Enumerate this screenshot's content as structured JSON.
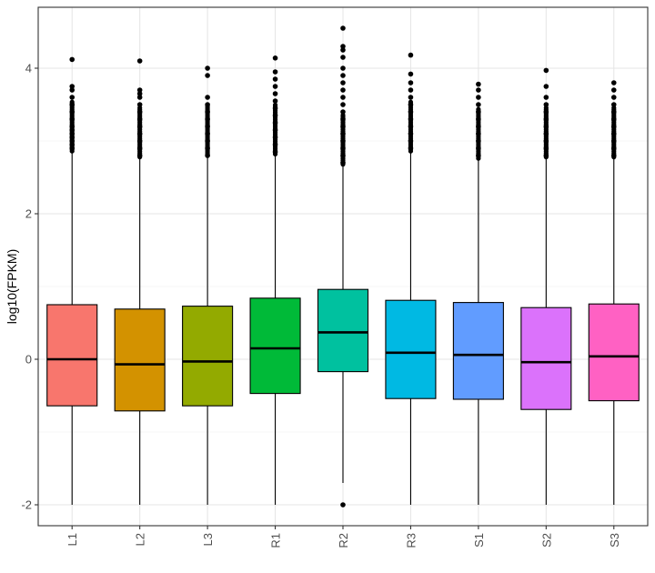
{
  "chart_data": {
    "type": "boxplot",
    "title": "",
    "xlabel": "",
    "ylabel": "log10(FPKM)",
    "ylim": [
      -2.2,
      4.9
    ],
    "y_ticks": [
      -2,
      0,
      2,
      4
    ],
    "y_tick_labels": [
      "-2",
      "0",
      "2",
      "4"
    ],
    "grid": true,
    "legend": "none",
    "categories": [
      "L1",
      "L2",
      "L3",
      "R1",
      "R2",
      "R3",
      "S1",
      "S2",
      "S3"
    ],
    "colors": [
      "#F8766D",
      "#D39200",
      "#93AA00",
      "#00BA38",
      "#00C19F",
      "#00B9E3",
      "#619CFF",
      "#DB72FB",
      "#FF61C3"
    ],
    "boxes": [
      {
        "name": "L1",
        "whisker_low": -2.0,
        "q1": -0.64,
        "median": 0.0,
        "q3": 0.75,
        "whisker_high": 2.84,
        "outliers": [
          2.9,
          2.95,
          3.0,
          3.05,
          3.1,
          3.15,
          3.2,
          3.3,
          3.4,
          3.5,
          3.6,
          3.7,
          3.75,
          4.12
        ]
      },
      {
        "name": "L2",
        "whisker_low": -2.0,
        "q1": -0.71,
        "median": -0.07,
        "q3": 0.69,
        "whisker_high": 2.76,
        "outliers": [
          2.8,
          2.9,
          3.0,
          3.1,
          3.2,
          3.3,
          3.4,
          3.5,
          3.6,
          3.65,
          3.7,
          4.1
        ]
      },
      {
        "name": "L3",
        "whisker_low": -2.0,
        "q1": -0.64,
        "median": -0.03,
        "q3": 0.73,
        "whisker_high": 2.78,
        "outliers": [
          2.8,
          2.9,
          3.0,
          3.1,
          3.2,
          3.3,
          3.4,
          3.5,
          3.6,
          3.9,
          4.0
        ]
      },
      {
        "name": "R1",
        "whisker_low": -2.0,
        "q1": -0.47,
        "median": 0.15,
        "q3": 0.84,
        "whisker_high": 2.8,
        "outliers": [
          2.85,
          2.95,
          3.05,
          3.15,
          3.25,
          3.35,
          3.45,
          3.55,
          3.65,
          3.75,
          3.85,
          3.95,
          4.14
        ]
      },
      {
        "name": "R2",
        "whisker_low": -1.7,
        "q1": -0.17,
        "median": 0.37,
        "q3": 0.96,
        "whisker_high": 2.66,
        "outliers": [
          -2.0,
          2.7,
          2.8,
          2.9,
          3.0,
          3.1,
          3.2,
          3.3,
          3.4,
          3.5,
          3.6,
          3.7,
          3.8,
          3.9,
          4.0,
          4.15,
          4.25,
          4.3,
          4.55
        ]
      },
      {
        "name": "R3",
        "whisker_low": -2.0,
        "q1": -0.54,
        "median": 0.09,
        "q3": 0.81,
        "whisker_high": 2.84,
        "outliers": [
          2.9,
          3.0,
          3.1,
          3.2,
          3.3,
          3.4,
          3.5,
          3.6,
          3.7,
          3.8,
          3.92,
          4.18
        ]
      },
      {
        "name": "S1",
        "whisker_low": -2.0,
        "q1": -0.55,
        "median": 0.06,
        "q3": 0.78,
        "whisker_high": 2.74,
        "outliers": [
          2.8,
          2.9,
          3.0,
          3.1,
          3.2,
          3.3,
          3.4,
          3.5,
          3.6,
          3.7,
          3.78
        ]
      },
      {
        "name": "S2",
        "whisker_low": -2.0,
        "q1": -0.69,
        "median": -0.04,
        "q3": 0.71,
        "whisker_high": 2.76,
        "outliers": [
          2.8,
          2.9,
          3.0,
          3.1,
          3.2,
          3.3,
          3.4,
          3.5,
          3.6,
          3.75,
          3.97
        ]
      },
      {
        "name": "S3",
        "whisker_low": -2.0,
        "q1": -0.57,
        "median": 0.04,
        "q3": 0.76,
        "whisker_high": 2.76,
        "outliers": [
          2.8,
          2.9,
          3.0,
          3.1,
          3.2,
          3.3,
          3.4,
          3.5,
          3.6,
          3.7,
          3.8
        ]
      }
    ]
  }
}
